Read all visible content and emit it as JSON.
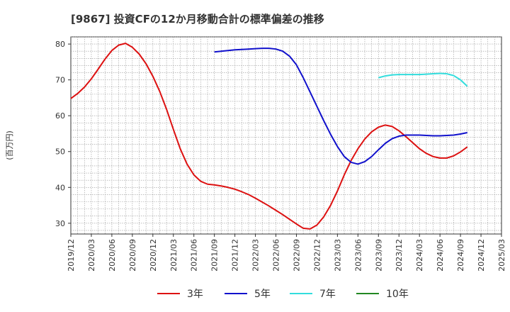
{
  "chart_data": {
    "type": "line",
    "title": "[9867]  投資CFの12か月移動合計の標準偏差の推移",
    "ylabel": "(百万円)",
    "xlabel": "",
    "ylim": [
      27,
      82
    ],
    "yticks": [
      30,
      40,
      50,
      60,
      70,
      80
    ],
    "x_range": [
      "2019-12",
      "2025-03"
    ],
    "x_ticks": [
      "2019/12",
      "2020/03",
      "2020/06",
      "2020/09",
      "2020/12",
      "2021/03",
      "2021/06",
      "2021/09",
      "2021/12",
      "2022/03",
      "2022/06",
      "2022/09",
      "2022/12",
      "2023/03",
      "2023/06",
      "2023/09",
      "2023/12",
      "2024/03",
      "2024/06",
      "2024/09",
      "2024/12",
      "2025/03"
    ],
    "grid": true,
    "legend_position": "bottom",
    "series": [
      {
        "name": "3年",
        "color": "#dd1111",
        "points": [
          [
            "2019-12",
            64.8
          ],
          [
            "2020-01",
            66.2
          ],
          [
            "2020-02",
            68.0
          ],
          [
            "2020-03",
            70.3
          ],
          [
            "2020-04",
            73.0
          ],
          [
            "2020-05",
            75.8
          ],
          [
            "2020-06",
            78.2
          ],
          [
            "2020-07",
            79.7
          ],
          [
            "2020-08",
            80.2
          ],
          [
            "2020-09",
            79.1
          ],
          [
            "2020-10",
            77.2
          ],
          [
            "2020-11",
            74.5
          ],
          [
            "2020-12",
            71.0
          ],
          [
            "2021-01",
            66.8
          ],
          [
            "2021-02",
            61.8
          ],
          [
            "2021-03",
            56.2
          ],
          [
            "2021-04",
            50.8
          ],
          [
            "2021-05",
            46.5
          ],
          [
            "2021-06",
            43.5
          ],
          [
            "2021-07",
            41.7
          ],
          [
            "2021-08",
            40.9
          ],
          [
            "2021-09",
            40.7
          ],
          [
            "2021-10",
            40.4
          ],
          [
            "2021-11",
            40.0
          ],
          [
            "2021-12",
            39.5
          ],
          [
            "2022-01",
            38.8
          ],
          [
            "2022-02",
            38.0
          ],
          [
            "2022-03",
            37.0
          ],
          [
            "2022-04",
            35.9
          ],
          [
            "2022-05",
            34.8
          ],
          [
            "2022-06",
            33.6
          ],
          [
            "2022-07",
            32.4
          ],
          [
            "2022-08",
            31.1
          ],
          [
            "2022-09",
            29.8
          ],
          [
            "2022-10",
            28.6
          ],
          [
            "2022-11",
            28.4
          ],
          [
            "2022-12",
            29.5
          ],
          [
            "2023-01",
            31.8
          ],
          [
            "2023-02",
            35.0
          ],
          [
            "2023-03",
            39.0
          ],
          [
            "2023-04",
            43.5
          ],
          [
            "2023-05",
            47.5
          ],
          [
            "2023-06",
            50.8
          ],
          [
            "2023-07",
            53.5
          ],
          [
            "2023-08",
            55.5
          ],
          [
            "2023-09",
            56.8
          ],
          [
            "2023-10",
            57.4
          ],
          [
            "2023-11",
            57.0
          ],
          [
            "2023-12",
            55.8
          ],
          [
            "2024-01",
            54.2
          ],
          [
            "2024-02",
            52.5
          ],
          [
            "2024-03",
            50.8
          ],
          [
            "2024-04",
            49.5
          ],
          [
            "2024-05",
            48.6
          ],
          [
            "2024-06",
            48.2
          ],
          [
            "2024-07",
            48.2
          ],
          [
            "2024-08",
            48.8
          ],
          [
            "2024-09",
            49.9
          ],
          [
            "2024-10",
            51.3
          ]
        ]
      },
      {
        "name": "5年",
        "color": "#1111cc",
        "points": [
          [
            "2021-09",
            77.8
          ],
          [
            "2021-10",
            78.0
          ],
          [
            "2021-11",
            78.2
          ],
          [
            "2021-12",
            78.4
          ],
          [
            "2022-01",
            78.5
          ],
          [
            "2022-02",
            78.6
          ],
          [
            "2022-03",
            78.7
          ],
          [
            "2022-04",
            78.8
          ],
          [
            "2022-05",
            78.8
          ],
          [
            "2022-06",
            78.6
          ],
          [
            "2022-07",
            78.0
          ],
          [
            "2022-08",
            76.6
          ],
          [
            "2022-09",
            74.2
          ],
          [
            "2022-10",
            70.6
          ],
          [
            "2022-11",
            66.6
          ],
          [
            "2022-12",
            62.6
          ],
          [
            "2023-01",
            58.6
          ],
          [
            "2023-02",
            54.8
          ],
          [
            "2023-03",
            51.4
          ],
          [
            "2023-04",
            48.6
          ],
          [
            "2023-05",
            47.0
          ],
          [
            "2023-06",
            46.5
          ],
          [
            "2023-07",
            47.2
          ],
          [
            "2023-08",
            48.6
          ],
          [
            "2023-09",
            50.5
          ],
          [
            "2023-10",
            52.3
          ],
          [
            "2023-11",
            53.6
          ],
          [
            "2023-12",
            54.3
          ],
          [
            "2024-01",
            54.6
          ],
          [
            "2024-02",
            54.6
          ],
          [
            "2024-03",
            54.6
          ],
          [
            "2024-04",
            54.5
          ],
          [
            "2024-05",
            54.4
          ],
          [
            "2024-06",
            54.4
          ],
          [
            "2024-07",
            54.5
          ],
          [
            "2024-08",
            54.6
          ],
          [
            "2024-09",
            54.9
          ],
          [
            "2024-10",
            55.3
          ]
        ]
      },
      {
        "name": "7年",
        "color": "#33dddd",
        "points": [
          [
            "2023-09",
            70.6
          ],
          [
            "2023-10",
            71.1
          ],
          [
            "2023-11",
            71.4
          ],
          [
            "2023-12",
            71.5
          ],
          [
            "2024-01",
            71.5
          ],
          [
            "2024-02",
            71.5
          ],
          [
            "2024-03",
            71.5
          ],
          [
            "2024-04",
            71.6
          ],
          [
            "2024-05",
            71.7
          ],
          [
            "2024-06",
            71.8
          ],
          [
            "2024-07",
            71.7
          ],
          [
            "2024-08",
            71.2
          ],
          [
            "2024-09",
            70.0
          ],
          [
            "2024-10",
            68.2
          ]
        ]
      },
      {
        "name": "10年",
        "color": "#228822",
        "points": []
      }
    ]
  }
}
